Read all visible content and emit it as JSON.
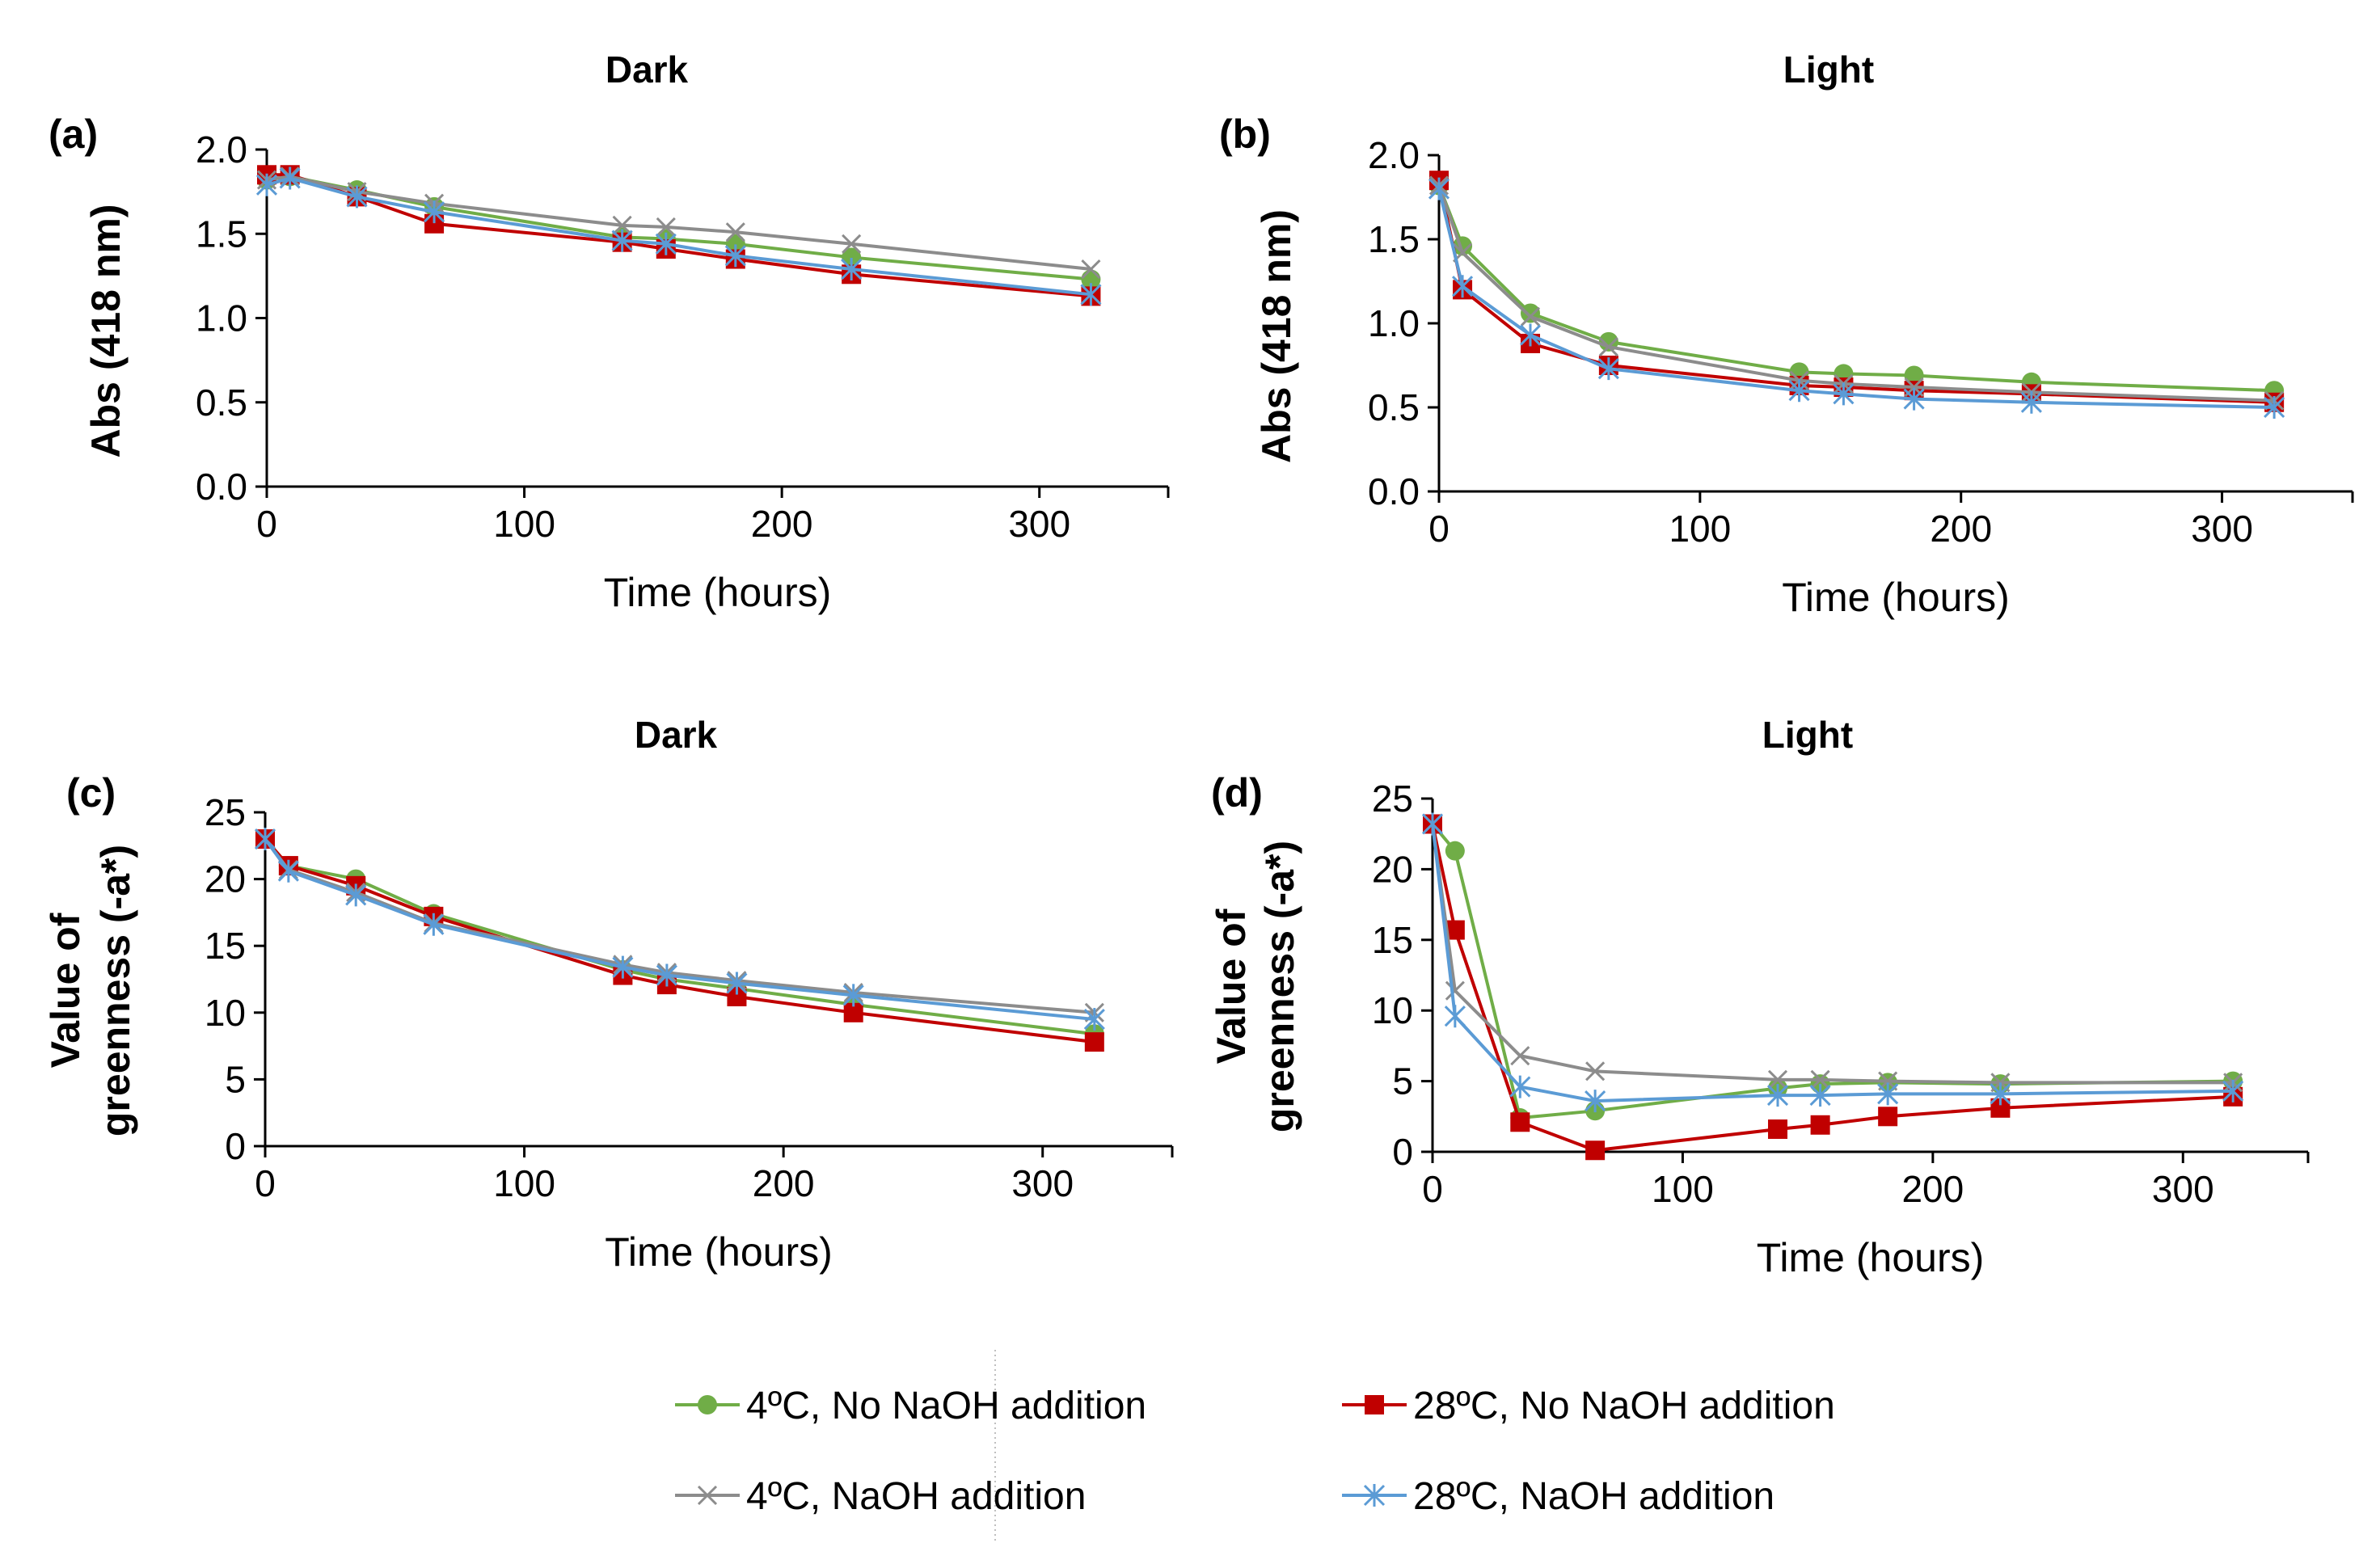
{
  "legend": [
    {
      "label": "4ºC, No NaOH addition",
      "color": "#70AD47",
      "marker": "circle"
    },
    {
      "label": "28ºC, No NaOH addition",
      "color": "#C00000",
      "marker": "square"
    },
    {
      "label": "4ºC, NaOH addition",
      "color": "#8C8C8C",
      "marker": "x"
    },
    {
      "label": "28ºC, NaOH addition",
      "color": "#5B9BD5",
      "marker": "star"
    }
  ],
  "chart_data": [
    {
      "type": "line",
      "panel": "(a)",
      "title": "Dark",
      "xlabel": "Time (hours)",
      "ylabel": "Abs (418 nm)",
      "xlim": [
        0,
        350
      ],
      "ylim": [
        0,
        2.0
      ],
      "xticks": [
        0,
        100,
        200,
        300
      ],
      "yticks": [
        0.0,
        0.5,
        1.0,
        1.5,
        2.0
      ],
      "ytick_labels": [
        "0.0",
        "0.5",
        "1.0",
        "1.5",
        "2.0"
      ],
      "x": [
        0,
        9,
        35,
        65,
        138,
        155,
        182,
        227,
        320
      ],
      "series": [
        {
          "name": "4ºC, No NaOH addition",
          "values": [
            1.82,
            1.84,
            1.76,
            1.66,
            1.48,
            1.47,
            1.44,
            1.36,
            1.23
          ]
        },
        {
          "name": "28ºC, No NaOH addition",
          "values": [
            1.85,
            1.85,
            1.72,
            1.56,
            1.45,
            1.41,
            1.35,
            1.26,
            1.13
          ]
        },
        {
          "name": "4ºC, NaOH addition",
          "values": [
            1.82,
            1.84,
            1.75,
            1.68,
            1.55,
            1.54,
            1.51,
            1.44,
            1.29
          ]
        },
        {
          "name": "28ºC, NaOH addition",
          "values": [
            1.79,
            1.83,
            1.72,
            1.63,
            1.46,
            1.44,
            1.37,
            1.29,
            1.14
          ]
        }
      ]
    },
    {
      "type": "line",
      "panel": "(b)",
      "title": "Light",
      "xlabel": "Time (hours)",
      "ylabel": "Abs (418 nm)",
      "xlim": [
        0,
        350
      ],
      "ylim": [
        0,
        2.0
      ],
      "xticks": [
        0,
        100,
        200,
        300
      ],
      "yticks": [
        0.0,
        0.5,
        1.0,
        1.5,
        2.0
      ],
      "ytick_labels": [
        "0.0",
        "0.5",
        "1.0",
        "1.5",
        "2.0"
      ],
      "x": [
        0,
        9,
        35,
        65,
        138,
        155,
        182,
        227,
        320
      ],
      "series": [
        {
          "name": "4ºC, No NaOH addition",
          "values": [
            1.82,
            1.46,
            1.06,
            0.89,
            0.71,
            0.7,
            0.69,
            0.65,
            0.6
          ]
        },
        {
          "name": "28ºC, No NaOH addition",
          "values": [
            1.85,
            1.2,
            0.88,
            0.75,
            0.63,
            0.62,
            0.6,
            0.58,
            0.53
          ]
        },
        {
          "name": "4ºC, NaOH addition",
          "values": [
            1.82,
            1.42,
            1.04,
            0.86,
            0.66,
            0.64,
            0.62,
            0.59,
            0.54
          ]
        },
        {
          "name": "28ºC, NaOH addition",
          "values": [
            1.8,
            1.22,
            0.93,
            0.73,
            0.6,
            0.58,
            0.55,
            0.53,
            0.5
          ]
        }
      ]
    },
    {
      "type": "line",
      "panel": "(c)",
      "title": "Dark",
      "xlabel": "Time (hours)",
      "ylabel": "Value of greenness (-a*)",
      "ylabel_lines": [
        "Value of",
        "greenness (-a*)"
      ],
      "xlim": [
        0,
        350
      ],
      "ylim": [
        0,
        25
      ],
      "xticks": [
        0,
        100,
        200,
        300
      ],
      "yticks": [
        0,
        5,
        10,
        15,
        20,
        25
      ],
      "ytick_labels": [
        "0",
        "5",
        "10",
        "15",
        "20",
        "25"
      ],
      "x": [
        0,
        9,
        35,
        65,
        138,
        155,
        182,
        227,
        320
      ],
      "series": [
        {
          "name": "4ºC, No NaOH addition",
          "values": [
            23.0,
            21.0,
            20.0,
            17.4,
            13.2,
            12.5,
            11.8,
            10.6,
            8.4
          ]
        },
        {
          "name": "28ºC, No NaOH addition",
          "values": [
            23.0,
            21.0,
            19.5,
            17.2,
            12.8,
            12.1,
            11.2,
            10.0,
            7.8
          ]
        },
        {
          "name": "4ºC, NaOH addition",
          "values": [
            23.0,
            20.7,
            19.0,
            16.7,
            13.6,
            13.0,
            12.4,
            11.5,
            10.0
          ]
        },
        {
          "name": "28ºC, NaOH addition",
          "values": [
            23.0,
            20.6,
            18.8,
            16.6,
            13.4,
            12.8,
            12.2,
            11.3,
            9.5
          ]
        }
      ]
    },
    {
      "type": "line",
      "panel": "(d)",
      "title": "Light",
      "xlabel": "Time (hours)",
      "ylabel": "Value of greenness (-a*)",
      "ylabel_lines": [
        "Value of",
        "greenness (-a*)"
      ],
      "xlim": [
        0,
        350
      ],
      "ylim": [
        0,
        25
      ],
      "xticks": [
        0,
        100,
        200,
        300
      ],
      "yticks": [
        0,
        5,
        10,
        15,
        20,
        25
      ],
      "ytick_labels": [
        "0",
        "5",
        "10",
        "15",
        "20",
        "25"
      ],
      "x": [
        0,
        9,
        35,
        65,
        138,
        155,
        182,
        227,
        320
      ],
      "series": [
        {
          "name": "4ºC, No NaOH addition",
          "values": [
            23.2,
            21.3,
            2.4,
            2.9,
            4.5,
            4.8,
            4.9,
            4.8,
            5.0
          ]
        },
        {
          "name": "28ºC, No NaOH addition",
          "values": [
            23.2,
            15.7,
            2.1,
            0.1,
            1.6,
            1.9,
            2.5,
            3.1,
            3.9
          ]
        },
        {
          "name": "4ºC, NaOH addition",
          "values": [
            23.2,
            11.4,
            6.8,
            5.7,
            5.1,
            5.1,
            5.0,
            4.9,
            4.9
          ]
        },
        {
          "name": "28ºC, NaOH addition",
          "values": [
            23.2,
            9.6,
            4.6,
            3.6,
            4.0,
            4.0,
            4.1,
            4.1,
            4.3
          ]
        }
      ]
    }
  ]
}
